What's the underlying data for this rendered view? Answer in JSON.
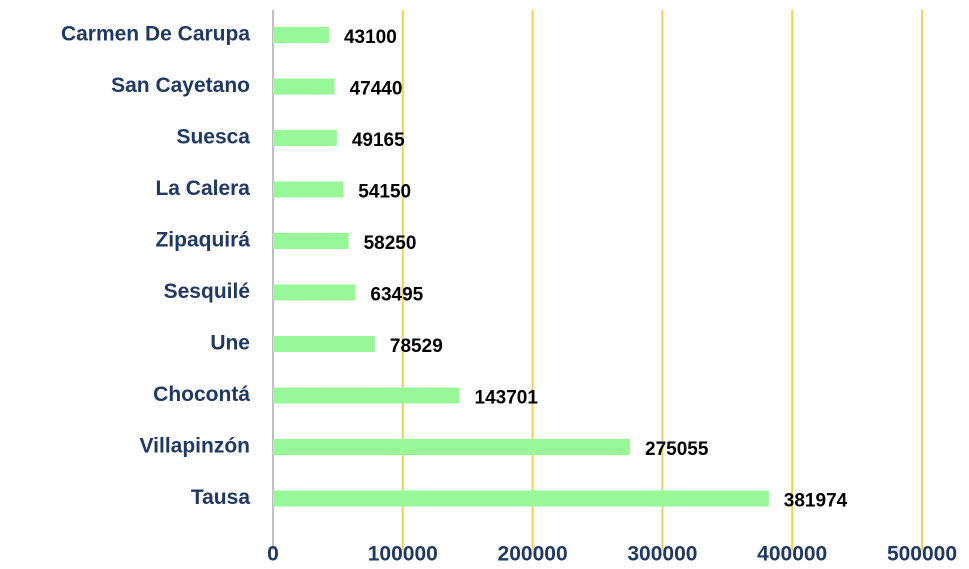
{
  "chart_data": {
    "type": "bar",
    "orientation": "horizontal",
    "categories": [
      "Carmen De Carupa",
      "San Cayetano",
      "Suesca",
      "La Calera",
      "Zipaquirá",
      "Sesquilé",
      "Une",
      "Chocontá",
      "Villapinzón",
      "Tausa"
    ],
    "values": [
      43100,
      47440,
      49165,
      54150,
      58250,
      63495,
      78529,
      143701,
      275055,
      381974
    ],
    "color": "#98f898",
    "xlim": [
      0,
      500000
    ],
    "xticks": [
      0,
      100000,
      200000,
      300000,
      400000,
      500000
    ],
    "grid": true,
    "grid_color": "#f5cf5a"
  }
}
